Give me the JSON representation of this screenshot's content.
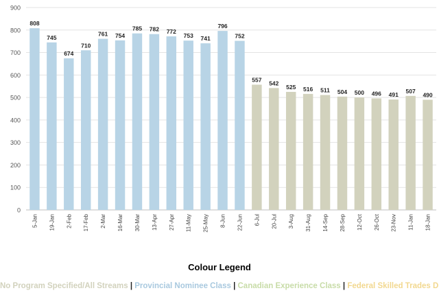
{
  "chart_data": {
    "type": "bar",
    "categories": [
      "5-Jan",
      "19-Jan",
      "2-Feb",
      "17-Feb",
      "2-Mar",
      "16-Mar",
      "30-Mar",
      "13-Apr",
      "27-Apr",
      "11-May",
      "25-May",
      "8-Jun",
      "22-Jun",
      "6-Jul",
      "20-Jul",
      "3-Aug",
      "31-Aug",
      "14-Sep",
      "28-Sep",
      "12-Oct",
      "26-Oct",
      "23-Nov",
      "11-Jan",
      "18-Jan"
    ],
    "values": [
      808,
      745,
      674,
      710,
      761,
      754,
      785,
      782,
      772,
      753,
      741,
      796,
      752,
      557,
      542,
      525,
      516,
      511,
      504,
      500,
      496,
      491,
      507,
      490
    ],
    "bar_colors": [
      "#b8d4e6",
      "#b8d4e6",
      "#b8d4e6",
      "#b8d4e6",
      "#b8d4e6",
      "#b8d4e6",
      "#b8d4e6",
      "#b8d4e6",
      "#b8d4e6",
      "#b8d4e6",
      "#b8d4e6",
      "#b8d4e6",
      "#b8d4e6",
      "#d2d2bd",
      "#d2d2bd",
      "#d2d2bd",
      "#d2d2bd",
      "#d2d2bd",
      "#d2d2bd",
      "#d2d2bd",
      "#d2d2bd",
      "#d2d2bd",
      "#d2d2bd",
      "#d2d2bd"
    ],
    "ylim": [
      0,
      900
    ],
    "yticks": [
      0,
      100,
      200,
      300,
      400,
      500,
      600,
      700,
      800,
      900
    ],
    "grid": true,
    "data_labels": true
  },
  "legend": {
    "title": "Colour Legend",
    "separator": "|",
    "items": [
      {
        "label": "No Program Specified/All Streams",
        "color": "#d2d2bd"
      },
      {
        "label": "Provincial Nominee Class",
        "color": "#a9c9df"
      },
      {
        "label": "Canadian Experience Class",
        "color": "#c8dca8"
      },
      {
        "label": "Federal Skilled Trades Draw",
        "color": "#f2d890"
      }
    ]
  }
}
